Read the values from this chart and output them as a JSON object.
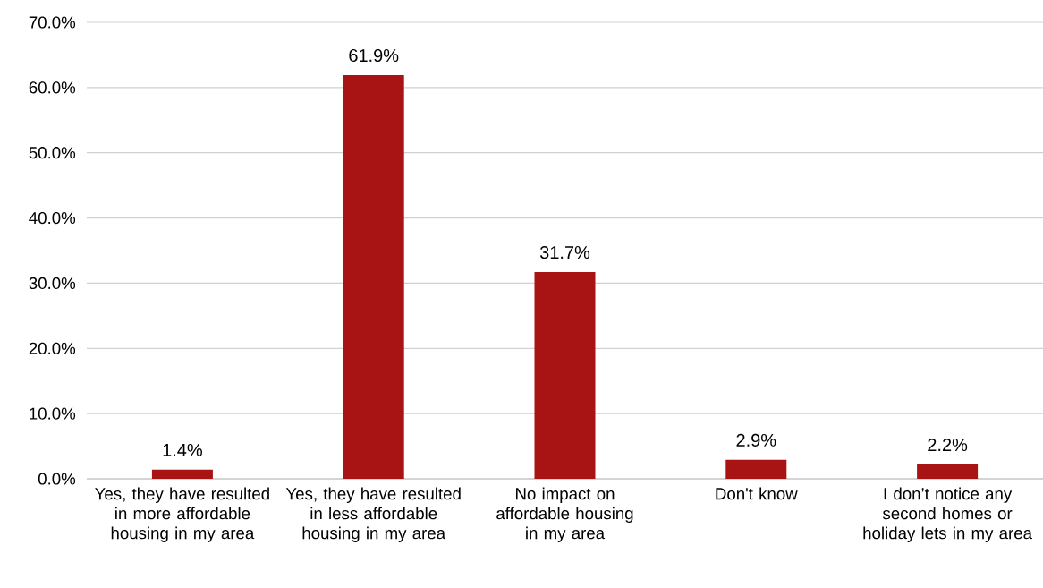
{
  "chart_data": {
    "type": "bar",
    "categories": [
      "Yes, they have resulted in more affordable housing in my area",
      "Yes, they have resulted in less affordable housing in my area",
      "No impact on affordable housing in my area",
      "Don't know",
      "I don’t notice any second homes or holiday lets in my area"
    ],
    "values": [
      1.4,
      61.9,
      31.7,
      2.9,
      2.2
    ],
    "value_labels": [
      "1.4%",
      "61.9%",
      "31.7%",
      "2.9%",
      "2.2%"
    ],
    "color": "#a81313",
    "ylim": [
      0,
      70
    ],
    "yticks": [
      {
        "value": 0,
        "label": "0.0%"
      },
      {
        "value": 10,
        "label": "10.0%"
      },
      {
        "value": 20,
        "label": "20.0%"
      },
      {
        "value": 30,
        "label": "30.0%"
      },
      {
        "value": 40,
        "label": "40.0%"
      },
      {
        "value": 50,
        "label": "50.0%"
      },
      {
        "value": 60,
        "label": "60.0%"
      },
      {
        "value": 70,
        "label": "70.0%"
      }
    ],
    "grid": "y"
  }
}
